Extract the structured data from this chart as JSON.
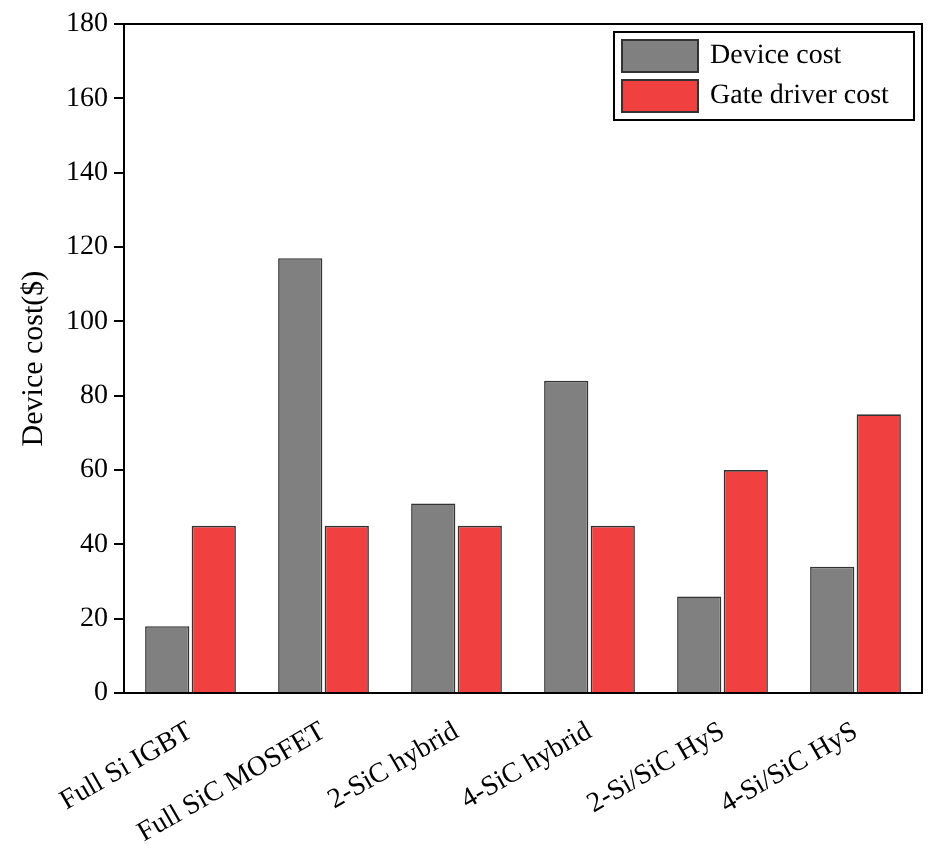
{
  "chart_data": {
    "type": "bar",
    "ylabel": "Device cost($)",
    "categories": [
      "Full Si IGBT",
      "Full SiC MOSFET",
      "2-SiC hybrid",
      "4-SiC hybrid",
      "2-Si/SiC HyS",
      "4-Si/SiC HyS"
    ],
    "series": [
      {
        "name": "Device cost",
        "color": "#808080",
        "values": [
          18,
          117,
          51,
          84,
          26,
          34
        ]
      },
      {
        "name": "Gate driver cost",
        "color": "#f04040",
        "values": [
          45,
          45,
          45,
          45,
          60,
          75
        ]
      }
    ],
    "ylim": [
      0,
      180
    ],
    "yticks": [
      0,
      20,
      40,
      60,
      80,
      100,
      120,
      140,
      160,
      180
    ],
    "grid": false,
    "legend": "top right"
  }
}
